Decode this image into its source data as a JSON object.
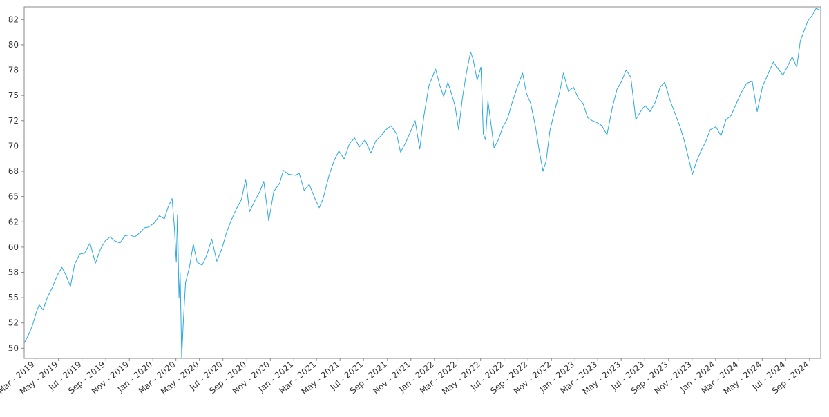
{
  "chart_data": {
    "type": "line",
    "title": "",
    "xlabel": "",
    "ylabel": "",
    "x_range": [
      "2019-02-01",
      "2024-09-30"
    ],
    "ylim": [
      49,
      83.75
    ],
    "yticks": [
      50,
      52.5,
      55,
      57.5,
      60,
      62.5,
      65,
      67.5,
      70,
      72.5,
      75,
      77.5,
      80,
      82.5
    ],
    "ytick_labels": [
      "50",
      "52",
      "55",
      "58",
      "60",
      "62",
      "65",
      "68",
      "70",
      "72",
      "75",
      "78",
      "80",
      "82"
    ],
    "xticks": [
      {
        "date": "2019-03-01",
        "label": "Mar - 2019"
      },
      {
        "date": "2019-05-01",
        "label": "May - 2019"
      },
      {
        "date": "2019-07-01",
        "label": "Jul - 2019"
      },
      {
        "date": "2019-09-01",
        "label": "Sep - 2019"
      },
      {
        "date": "2019-11-01",
        "label": "Nov - 2019"
      },
      {
        "date": "2020-01-01",
        "label": "Jan - 2020"
      },
      {
        "date": "2020-03-01",
        "label": "Mar - 2020"
      },
      {
        "date": "2020-05-01",
        "label": "May - 2020"
      },
      {
        "date": "2020-07-01",
        "label": "Jul - 2020"
      },
      {
        "date": "2020-09-01",
        "label": "Sep - 2020"
      },
      {
        "date": "2020-11-01",
        "label": "Nov - 2020"
      },
      {
        "date": "2021-01-01",
        "label": "Jan - 2021"
      },
      {
        "date": "2021-03-01",
        "label": "Mar - 2021"
      },
      {
        "date": "2021-05-01",
        "label": "May - 2021"
      },
      {
        "date": "2021-07-01",
        "label": "Jul - 2021"
      },
      {
        "date": "2021-09-01",
        "label": "Sep - 2021"
      },
      {
        "date": "2021-11-01",
        "label": "Nov - 2021"
      },
      {
        "date": "2022-01-01",
        "label": "Jan - 2022"
      },
      {
        "date": "2022-03-01",
        "label": "Mar - 2022"
      },
      {
        "date": "2022-05-01",
        "label": "May - 2022"
      },
      {
        "date": "2022-07-01",
        "label": "Jul - 2022"
      },
      {
        "date": "2022-09-01",
        "label": "Sep - 2022"
      },
      {
        "date": "2022-11-01",
        "label": "Nov - 2022"
      },
      {
        "date": "2023-01-01",
        "label": "Jan - 2023"
      },
      {
        "date": "2023-03-01",
        "label": "Mar - 2023"
      },
      {
        "date": "2023-05-01",
        "label": "May - 2023"
      },
      {
        "date": "2023-07-01",
        "label": "Jul - 2023"
      },
      {
        "date": "2023-09-01",
        "label": "Sep - 2023"
      },
      {
        "date": "2023-11-01",
        "label": "Nov - 2023"
      },
      {
        "date": "2024-01-01",
        "label": "Jan - 2024"
      },
      {
        "date": "2024-03-01",
        "label": "Mar - 2024"
      },
      {
        "date": "2024-05-01",
        "label": "May - 2024"
      },
      {
        "date": "2024-07-01",
        "label": "Jul - 2024"
      },
      {
        "date": "2024-09-01",
        "label": "Sep - 2024"
      }
    ],
    "grid": false,
    "legend": "none",
    "series": [
      {
        "color": "#29a8e0",
        "points": [
          [
            "2019-02-01",
            50.5
          ],
          [
            "2019-02-12",
            51.3
          ],
          [
            "2019-02-22",
            52.2
          ],
          [
            "2019-03-05",
            53.6
          ],
          [
            "2019-03-12",
            54.3
          ],
          [
            "2019-03-22",
            53.8
          ],
          [
            "2019-04-02",
            55.0
          ],
          [
            "2019-04-15",
            56.0
          ],
          [
            "2019-04-28",
            57.2
          ],
          [
            "2019-05-10",
            58.0
          ],
          [
            "2019-05-22",
            57.1
          ],
          [
            "2019-06-01",
            56.1
          ],
          [
            "2019-06-12",
            58.3
          ],
          [
            "2019-06-25",
            59.3
          ],
          [
            "2019-07-08",
            59.4
          ],
          [
            "2019-07-22",
            60.4
          ],
          [
            "2019-08-05",
            58.4
          ],
          [
            "2019-08-18",
            59.8
          ],
          [
            "2019-08-30",
            60.6
          ],
          [
            "2019-09-12",
            61.0
          ],
          [
            "2019-09-25",
            60.6
          ],
          [
            "2019-10-08",
            60.4
          ],
          [
            "2019-10-20",
            61.1
          ],
          [
            "2019-11-02",
            61.2
          ],
          [
            "2019-11-15",
            61.0
          ],
          [
            "2019-11-28",
            61.4
          ],
          [
            "2019-12-10",
            61.9
          ],
          [
            "2019-12-22",
            62.0
          ],
          [
            "2020-01-05",
            62.4
          ],
          [
            "2020-01-18",
            63.1
          ],
          [
            "2020-01-31",
            62.8
          ],
          [
            "2020-02-10",
            64.0
          ],
          [
            "2020-02-20",
            64.8
          ],
          [
            "2020-02-26",
            62.0
          ],
          [
            "2020-03-02",
            58.5
          ],
          [
            "2020-03-05",
            63.2
          ],
          [
            "2020-03-09",
            55.0
          ],
          [
            "2020-03-12",
            57.5
          ],
          [
            "2020-03-16",
            49.0
          ],
          [
            "2020-03-20",
            52.5
          ],
          [
            "2020-03-26",
            56.5
          ],
          [
            "2020-04-05",
            58.0
          ],
          [
            "2020-04-15",
            60.3
          ],
          [
            "2020-04-25",
            58.5
          ],
          [
            "2020-05-08",
            58.2
          ],
          [
            "2020-05-20",
            59.2
          ],
          [
            "2020-06-02",
            60.8
          ],
          [
            "2020-06-15",
            58.6
          ],
          [
            "2020-06-28",
            59.8
          ],
          [
            "2020-07-10",
            61.4
          ],
          [
            "2020-07-22",
            62.6
          ],
          [
            "2020-08-05",
            63.8
          ],
          [
            "2020-08-18",
            64.7
          ],
          [
            "2020-08-29",
            66.7
          ],
          [
            "2020-09-08",
            63.5
          ],
          [
            "2020-09-22",
            64.6
          ],
          [
            "2020-10-05",
            65.5
          ],
          [
            "2020-10-15",
            66.5
          ],
          [
            "2020-10-28",
            62.6
          ],
          [
            "2020-11-10",
            65.5
          ],
          [
            "2020-11-25",
            66.3
          ],
          [
            "2020-12-05",
            67.6
          ],
          [
            "2020-12-18",
            67.2
          ],
          [
            "2021-01-05",
            67.1
          ],
          [
            "2021-01-15",
            67.3
          ],
          [
            "2021-01-28",
            65.6
          ],
          [
            "2021-02-10",
            66.2
          ],
          [
            "2021-02-25",
            64.8
          ],
          [
            "2021-03-08",
            63.9
          ],
          [
            "2021-03-18",
            64.8
          ],
          [
            "2021-04-02",
            67.0
          ],
          [
            "2021-04-15",
            68.5
          ],
          [
            "2021-04-28",
            69.5
          ],
          [
            "2021-05-12",
            68.7
          ],
          [
            "2021-05-25",
            70.2
          ],
          [
            "2021-06-08",
            70.8
          ],
          [
            "2021-06-20",
            69.9
          ],
          [
            "2021-07-05",
            70.6
          ],
          [
            "2021-07-20",
            69.3
          ],
          [
            "2021-08-02",
            70.5
          ],
          [
            "2021-08-15",
            71.0
          ],
          [
            "2021-08-28",
            71.6
          ],
          [
            "2021-09-10",
            72.0
          ],
          [
            "2021-09-25",
            71.2
          ],
          [
            "2021-10-05",
            69.4
          ],
          [
            "2021-10-18",
            70.3
          ],
          [
            "2021-11-01",
            71.5
          ],
          [
            "2021-11-12",
            72.5
          ],
          [
            "2021-11-24",
            69.7
          ],
          [
            "2021-12-05",
            73.0
          ],
          [
            "2021-12-18",
            76.0
          ],
          [
            "2022-01-04",
            77.6
          ],
          [
            "2022-01-15",
            76.0
          ],
          [
            "2022-01-25",
            74.9
          ],
          [
            "2022-02-05",
            76.3
          ],
          [
            "2022-02-15",
            75.1
          ],
          [
            "2022-02-24",
            73.9
          ],
          [
            "2022-03-05",
            71.6
          ],
          [
            "2022-03-15",
            74.8
          ],
          [
            "2022-03-25",
            77.2
          ],
          [
            "2022-04-05",
            79.3
          ],
          [
            "2022-04-12",
            78.5
          ],
          [
            "2022-04-22",
            76.5
          ],
          [
            "2022-05-02",
            77.8
          ],
          [
            "2022-05-08",
            71.2
          ],
          [
            "2022-05-14",
            70.6
          ],
          [
            "2022-05-20",
            74.5
          ],
          [
            "2022-05-28",
            72.2
          ],
          [
            "2022-06-05",
            69.8
          ],
          [
            "2022-06-16",
            70.6
          ],
          [
            "2022-06-28",
            71.9
          ],
          [
            "2022-07-10",
            72.7
          ],
          [
            "2022-07-22",
            74.3
          ],
          [
            "2022-08-05",
            75.9
          ],
          [
            "2022-08-18",
            77.2
          ],
          [
            "2022-08-28",
            75.2
          ],
          [
            "2022-09-08",
            74.2
          ],
          [
            "2022-09-20",
            72.0
          ],
          [
            "2022-09-30",
            69.6
          ],
          [
            "2022-10-10",
            67.5
          ],
          [
            "2022-10-18",
            68.5
          ],
          [
            "2022-10-28",
            71.5
          ],
          [
            "2022-11-10",
            73.6
          ],
          [
            "2022-11-22",
            75.3
          ],
          [
            "2022-12-02",
            77.2
          ],
          [
            "2022-12-15",
            75.4
          ],
          [
            "2022-12-28",
            75.8
          ],
          [
            "2023-01-10",
            74.7
          ],
          [
            "2023-01-22",
            74.2
          ],
          [
            "2023-02-03",
            72.8
          ],
          [
            "2023-02-15",
            72.5
          ],
          [
            "2023-02-28",
            72.3
          ],
          [
            "2023-03-12",
            72.0
          ],
          [
            "2023-03-25",
            71.1
          ],
          [
            "2023-04-08",
            73.8
          ],
          [
            "2023-04-20",
            75.6
          ],
          [
            "2023-05-02",
            76.4
          ],
          [
            "2023-05-14",
            77.5
          ],
          [
            "2023-05-26",
            76.8
          ],
          [
            "2023-06-08",
            72.6
          ],
          [
            "2023-06-20",
            73.4
          ],
          [
            "2023-07-02",
            74.0
          ],
          [
            "2023-07-15",
            73.4
          ],
          [
            "2023-07-28",
            74.3
          ],
          [
            "2023-08-10",
            75.8
          ],
          [
            "2023-08-22",
            76.3
          ],
          [
            "2023-09-05",
            74.5
          ],
          [
            "2023-09-18",
            73.2
          ],
          [
            "2023-09-30",
            72.0
          ],
          [
            "2023-10-12",
            70.5
          ],
          [
            "2023-10-24",
            68.6
          ],
          [
            "2023-11-02",
            67.2
          ],
          [
            "2023-11-12",
            68.4
          ],
          [
            "2023-11-24",
            69.5
          ],
          [
            "2023-12-06",
            70.4
          ],
          [
            "2023-12-18",
            71.6
          ],
          [
            "2024-01-02",
            71.9
          ],
          [
            "2024-01-15",
            71.0
          ],
          [
            "2024-01-28",
            72.6
          ],
          [
            "2024-02-10",
            73.0
          ],
          [
            "2024-02-24",
            74.2
          ],
          [
            "2024-03-08",
            75.3
          ],
          [
            "2024-03-22",
            76.2
          ],
          [
            "2024-04-05",
            76.4
          ],
          [
            "2024-04-18",
            73.4
          ],
          [
            "2024-05-02",
            75.9
          ],
          [
            "2024-05-16",
            77.1
          ],
          [
            "2024-05-30",
            78.3
          ],
          [
            "2024-06-12",
            77.6
          ],
          [
            "2024-06-24",
            77.0
          ],
          [
            "2024-07-06",
            77.9
          ],
          [
            "2024-07-18",
            78.8
          ],
          [
            "2024-07-30",
            77.8
          ],
          [
            "2024-08-08",
            80.4
          ],
          [
            "2024-08-18",
            81.4
          ],
          [
            "2024-08-28",
            82.4
          ],
          [
            "2024-09-08",
            82.9
          ],
          [
            "2024-09-18",
            83.6
          ],
          [
            "2024-09-30",
            83.4
          ]
        ]
      }
    ]
  }
}
